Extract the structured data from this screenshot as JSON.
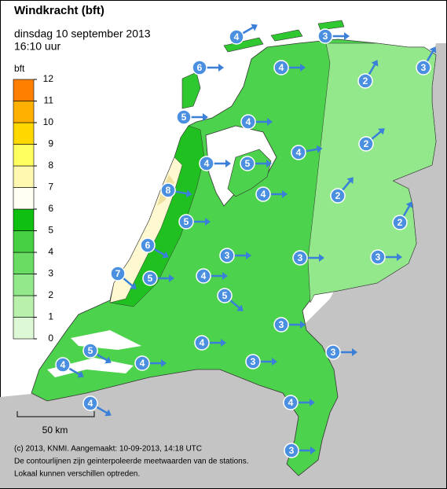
{
  "header": {
    "title": "Windkracht (bft)",
    "date": "dinsdag 10 september 2013",
    "time": "16:10 uur"
  },
  "legend": {
    "unit": "bft",
    "levels": [
      0,
      1,
      2,
      3,
      4,
      5,
      6,
      7,
      8,
      9,
      10,
      11,
      12
    ]
  },
  "scale_bar": "50 km",
  "footer": [
    "(c) 2013, KNMI. Aangemaakt: 10-09-2013, 14:18 UTC",
    "De contourlijnen zijn geinterpoleerde meetwaarden van de stations.",
    "Lokaal kunnen verschillen optreden."
  ],
  "stations": [
    4,
    3,
    3,
    6,
    4,
    2,
    5,
    4,
    2,
    4,
    4,
    5,
    8,
    2,
    4,
    2,
    5,
    6,
    3,
    3,
    3,
    7,
    5,
    4,
    5,
    3,
    4,
    5,
    3,
    4,
    4,
    3,
    4,
    4,
    3
  ]
}
